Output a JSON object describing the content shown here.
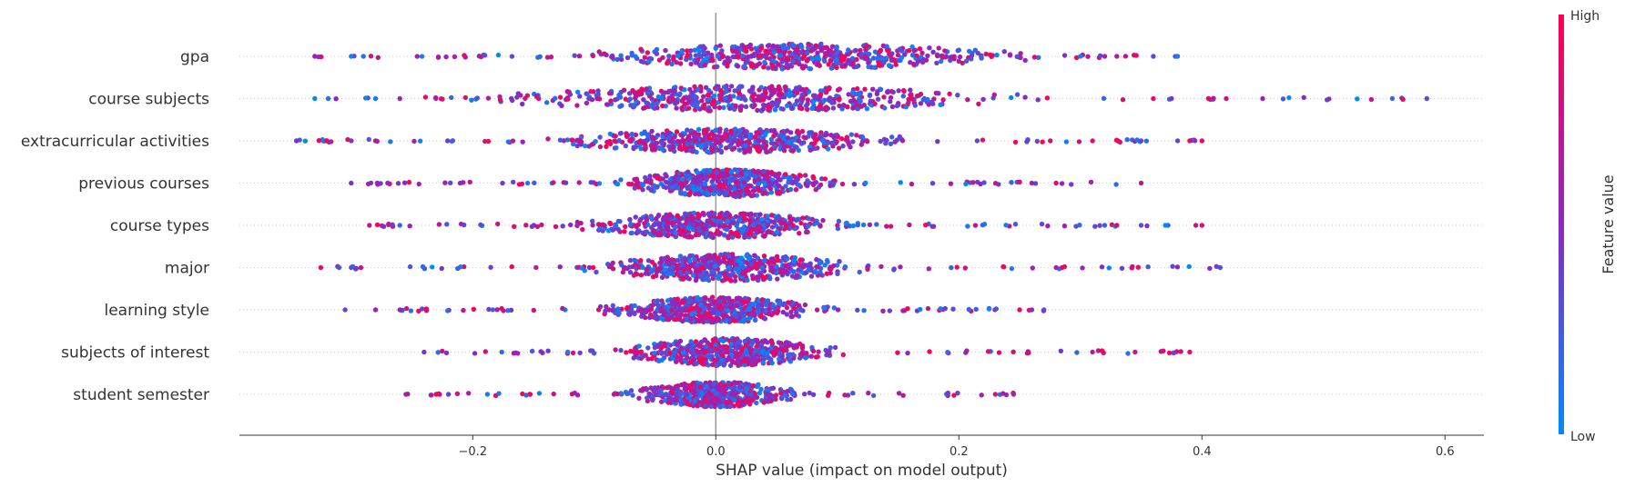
{
  "chart_data": {
    "type": "scatter",
    "subtype": "shap-beeswarm",
    "xlabel": "SHAP value (impact on model output)",
    "ylabel": "",
    "xlim": [
      -0.392,
      0.632
    ],
    "x_ticks": [
      -0.2,
      0.0,
      0.2,
      0.4,
      0.6
    ],
    "x_tick_labels": [
      "−0.2",
      "0.0",
      "0.2",
      "0.4",
      "0.6"
    ],
    "grid": false,
    "legend": "colorbar-right",
    "colorbar": {
      "title": "Feature value",
      "high_label": "High",
      "low_label": "Low",
      "high_color": "#ff0052",
      "low_color": "#008bfb"
    },
    "features": [
      {
        "name": "gpa",
        "min": -0.33,
        "max": 0.38,
        "outliers": [
          -0.33,
          -0.3,
          -0.29,
          0.3,
          0.32,
          0.33,
          0.36,
          0.38
        ],
        "center": 0.07,
        "spread": 0.1,
        "peak": 14
      },
      {
        "name": "course subjects",
        "min": -0.33,
        "max": 0.585,
        "outliers": [
          -0.33,
          -0.28,
          -0.26,
          0.36,
          0.375,
          0.42,
          0.45,
          0.585
        ],
        "center": 0.03,
        "spread": 0.12,
        "peak": 14
      },
      {
        "name": "extracurricular activities",
        "min": -0.345,
        "max": 0.4,
        "outliers": [
          -0.345,
          -0.32,
          -0.3,
          -0.28,
          0.31,
          0.35,
          0.38,
          0.39,
          0.4
        ],
        "center": 0.01,
        "spread": 0.08,
        "peak": 13
      },
      {
        "name": "previous courses",
        "min": -0.3,
        "max": 0.35,
        "outliers": [
          -0.3,
          -0.27,
          0.26,
          0.28,
          0.35
        ],
        "center": 0.01,
        "spread": 0.05,
        "peak": 15
      },
      {
        "name": "course types",
        "min": -0.285,
        "max": 0.4,
        "outliers": [
          -0.285,
          -0.26,
          0.32,
          0.33,
          0.35,
          0.37,
          0.395,
          0.4
        ],
        "center": 0.0,
        "spread": 0.06,
        "peak": 14
      },
      {
        "name": "major",
        "min": -0.325,
        "max": 0.415,
        "outliers": [
          -0.325,
          -0.31,
          -0.3,
          0.28,
          0.285,
          0.415
        ],
        "center": 0.01,
        "spread": 0.06,
        "peak": 15
      },
      {
        "name": "learning style",
        "min": -0.305,
        "max": 0.27,
        "outliers": [
          -0.305,
          -0.28,
          -0.26,
          0.25,
          0.26,
          0.27
        ],
        "center": 0.0,
        "spread": 0.05,
        "peak": 14
      },
      {
        "name": "subjects of interest",
        "min": -0.24,
        "max": 0.39,
        "outliers": [
          -0.24,
          0.31,
          0.345,
          0.39
        ],
        "center": 0.01,
        "spread": 0.05,
        "peak": 15
      },
      {
        "name": "student semester",
        "min": -0.255,
        "max": 0.245,
        "outliers": [
          -0.255,
          -0.23,
          -0.22,
          0.23,
          0.245
        ],
        "center": 0.0,
        "spread": 0.04,
        "peak": 14
      }
    ]
  }
}
